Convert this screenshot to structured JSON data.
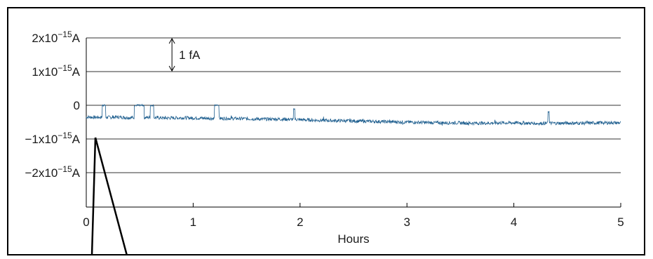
{
  "chart_data": {
    "type": "line",
    "xlabel": "Hours",
    "ylabel": "",
    "xlim": [
      0,
      5
    ],
    "ylim": [
      -3e-15,
      2.5e-15
    ],
    "grid": "horizontal",
    "x_ticks": [
      {
        "value": 0,
        "label": "0"
      },
      {
        "value": 1,
        "label": "1"
      },
      {
        "value": 2,
        "label": "2"
      },
      {
        "value": 3,
        "label": "3"
      },
      {
        "value": 4,
        "label": "4"
      },
      {
        "value": 5,
        "label": "5"
      }
    ],
    "y_ticks": [
      {
        "value": 2e-15,
        "mantissa": "2x10",
        "exp": "−15",
        "unit": "A"
      },
      {
        "value": 1e-15,
        "mantissa": "1x10",
        "exp": "−15",
        "unit": "A"
      },
      {
        "value": 0,
        "mantissa": "0",
        "exp": "",
        "unit": ""
      },
      {
        "value": -1e-15,
        "mantissa": "−1x10",
        "exp": "−15",
        "unit": "A"
      },
      {
        "value": -2e-15,
        "mantissa": "−2x10",
        "exp": "−15",
        "unit": "A"
      }
    ],
    "annotation": {
      "text": "1 fA",
      "x": 0.9,
      "from": 1e-15,
      "to": 2e-15
    },
    "series": [
      {
        "color": "#1f5f8f",
        "x": [
          0,
          0.15,
          0.3,
          0.45,
          0.6,
          0.75,
          0.9,
          1.05,
          1.2,
          1.35,
          1.5,
          1.65,
          1.8,
          1.95,
          2.1,
          2.25,
          2.4,
          2.55,
          2.7,
          2.85,
          3.0,
          3.15,
          3.3,
          3.45,
          3.6,
          3.75,
          3.9,
          4.05,
          4.2,
          4.35,
          4.5,
          4.65,
          4.8,
          5.0
        ],
        "y": [
          -3.5e-16,
          -3.6e-16,
          -3.5e-16,
          -3.7e-16,
          -3.6e-16,
          -3.8e-16,
          -3.7e-16,
          -3.8e-16,
          -3.9e-16,
          -3.9e-16,
          -4e-16,
          -4.1e-16,
          -4.1e-16,
          -4.2e-16,
          -4.4e-16,
          -4.5e-16,
          -4.6e-16,
          -4.7e-16,
          -4.8e-16,
          -4.9e-16,
          -5e-16,
          -5.1e-16,
          -5.2e-16,
          -5.2e-16,
          -5.3e-16,
          -5.3e-16,
          -5.2e-16,
          -5.2e-16,
          -5.4e-16,
          -5.3e-16,
          -5.3e-16,
          -5.3e-16,
          -5.2e-16,
          -5.2e-16
        ],
        "noise": 5e-17,
        "spikes": [
          {
            "x": 0.15,
            "width": 0.03,
            "y": 0
          },
          {
            "x": 0.45,
            "width": 0.09,
            "y": 0
          },
          {
            "x": 0.6,
            "width": 0.03,
            "y": 0
          },
          {
            "x": 1.2,
            "width": 0.04,
            "y": 0
          },
          {
            "x": 1.94,
            "width": 0.01,
            "y": -1e-16
          },
          {
            "x": 4.32,
            "width": 0.01,
            "y": -2e-16
          }
        ]
      }
    ]
  }
}
